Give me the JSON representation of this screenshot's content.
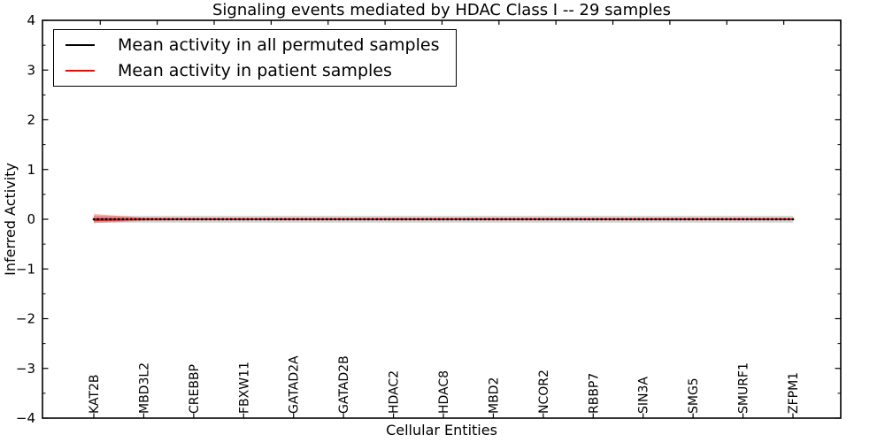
{
  "figure": {
    "title": "Signaling events mediated by HDAC Class I -- 29 samples",
    "xlabel": "Cellular Entities",
    "ylabel": "Inferred Activity"
  },
  "legend": {
    "position": "upper left",
    "items": [
      {
        "label": "Mean activity in all permuted samples",
        "color": "#000000"
      },
      {
        "label": "Mean activity in patient samples",
        "color": "#ff0000"
      }
    ]
  },
  "chart_data": {
    "type": "line",
    "title": "Signaling events mediated by HDAC Class I -- 29 samples",
    "xlabel": "Cellular Entities",
    "ylabel": "Inferred Activity",
    "ylim": [
      -4,
      4
    ],
    "yticks": [
      -4,
      -3,
      -2,
      -1,
      0,
      1,
      2,
      3,
      4
    ],
    "ytick_labels": [
      "−4",
      "−3",
      "−2",
      "−1",
      "0",
      "1",
      "2",
      "3",
      "4"
    ],
    "y_minor_step": 0.5,
    "grid": false,
    "legend_position": "upper left",
    "categories": [
      "KAT2B",
      "MBD3L2",
      "CREBBP",
      "FBXW11",
      "GATAD2A",
      "GATAD2B",
      "HDAC2",
      "HDAC8",
      "MBD2",
      "NCOR2",
      "RBBP7",
      "SIN3A",
      "SMG5",
      "SMURF1",
      "ZFPM1"
    ],
    "n_points": 169,
    "points_per_category_gap": 12,
    "series": [
      {
        "name": "Mean activity in all permuted samples",
        "color": "#000000",
        "marker": "square",
        "values": [
          0,
          0,
          0,
          0,
          0,
          0,
          0,
          0,
          0,
          0,
          0,
          0,
          0,
          0,
          0
        ]
      },
      {
        "name": "Mean activity in patient samples",
        "color": "#ff0000",
        "marker": "none",
        "values": [
          -0.02,
          0,
          0,
          0,
          0,
          0,
          0,
          0,
          0,
          0,
          0,
          0,
          0,
          0,
          0
        ]
      }
    ],
    "bands": [
      {
        "name": "permuted-samples-spread",
        "color": "#c0c0c0",
        "opacity": 0.75,
        "upper": [
          0.07,
          0.065,
          0.065,
          0.065,
          0.065,
          0.065,
          0.065,
          0.065,
          0.065,
          0.065,
          0.065,
          0.065,
          0.065,
          0.065,
          0.065
        ],
        "lower": [
          -0.07,
          -0.065,
          -0.065,
          -0.065,
          -0.065,
          -0.065,
          -0.065,
          -0.065,
          -0.065,
          -0.065,
          -0.065,
          -0.065,
          -0.065,
          -0.065,
          -0.065
        ]
      },
      {
        "name": "patient-samples-spread",
        "color": "#ff0000",
        "opacity": 0.32,
        "upper": [
          0.105,
          0.03,
          0.02,
          0.02,
          0.02,
          0.02,
          0.02,
          0.02,
          0.02,
          0.02,
          0.02,
          0.02,
          0.02,
          0.02,
          0.02
        ],
        "lower": [
          -0.075,
          -0.03,
          -0.02,
          -0.02,
          -0.02,
          -0.02,
          -0.02,
          -0.02,
          -0.02,
          -0.02,
          -0.02,
          -0.02,
          -0.02,
          -0.02,
          -0.02
        ]
      }
    ]
  }
}
